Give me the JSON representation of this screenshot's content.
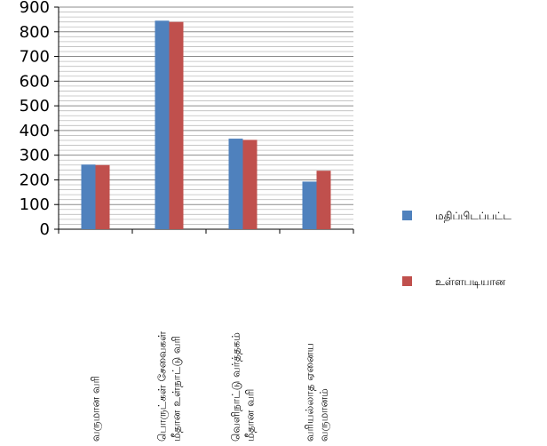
{
  "chart_data": {
    "type": "bar",
    "title": "",
    "xlabel": "",
    "ylabel": "",
    "ylim": [
      0,
      900
    ],
    "y_ticks": [
      0,
      100,
      200,
      300,
      400,
      500,
      600,
      700,
      800,
      900
    ],
    "grid": true,
    "legend_position": "right",
    "categories": [
      [
        "வருமான வரி"
      ],
      [
        "பொருட்கள் சேவைகள்",
        "மீதான உள்நாட்டு வரி"
      ],
      [
        "வெளிநாட்டு வர்த்தகம்",
        "மீதான வரி"
      ],
      [
        "வரியல்லாத ஏனைய",
        "வருமானம்"
      ]
    ],
    "series": [
      {
        "name": "மதிப்பிடப்பட்ட",
        "color": "#4F81BD",
        "values": [
          262,
          845,
          367,
          193
        ]
      },
      {
        "name": "உள்ளபடியான",
        "color": "#C0504D",
        "values": [
          260,
          840,
          362,
          237
        ]
      }
    ]
  }
}
